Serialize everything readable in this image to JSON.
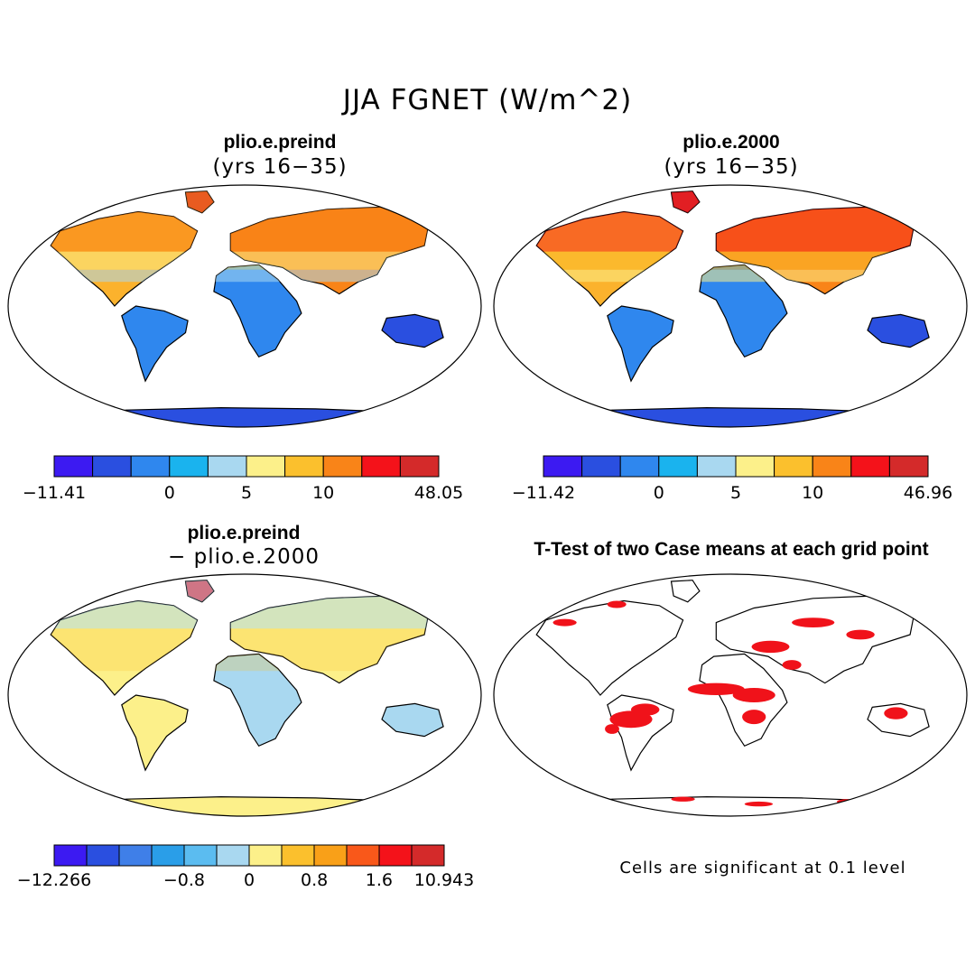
{
  "figure": {
    "title": "JJA FGNET (W/m^2)",
    "panels": [
      {
        "title": "plio.e.preind",
        "subtitle": "(yrs 16−35)"
      },
      {
        "title": "plio.e.2000",
        "subtitle": "(yrs 16−35)"
      },
      {
        "title": "plio.e.preind",
        "subtitle": "− plio.e.2000"
      },
      {
        "title": "T-Test of two Case means at each grid point",
        "subtitle": ""
      }
    ],
    "note": "Cells are significant at 0.1 level"
  },
  "colorbars": [
    {
      "colors": [
        "#3c1af2",
        "#2a4fe0",
        "#2f87ee",
        "#1ab3ee",
        "#a9d8f0",
        "#fcf08a",
        "#fbc02d",
        "#f98418",
        "#f4121a",
        "#d42a2a"
      ],
      "labels": [
        "−11.41",
        "0",
        "5",
        "10",
        "48.05"
      ]
    },
    {
      "colors": [
        "#3c1af2",
        "#2a4fe0",
        "#2f87ee",
        "#1ab3ee",
        "#a9d8f0",
        "#fcf08a",
        "#fbc02d",
        "#f98418",
        "#f4121a",
        "#d42a2a"
      ],
      "labels": [
        "−11.42",
        "0",
        "5",
        "10",
        "46.96"
      ]
    },
    {
      "colors": [
        "#3c1af2",
        "#2a4fe0",
        "#3f7fe8",
        "#2a9ee8",
        "#5bbcf0",
        "#a9d8f0",
        "#fcf08a",
        "#fbc02d",
        "#f9a018",
        "#f9581a",
        "#f4121a",
        "#d42a2a"
      ],
      "labels": [
        "−12.266",
        "−0.8",
        "0",
        "0.8",
        "1.6",
        "10.943"
      ]
    }
  ]
}
